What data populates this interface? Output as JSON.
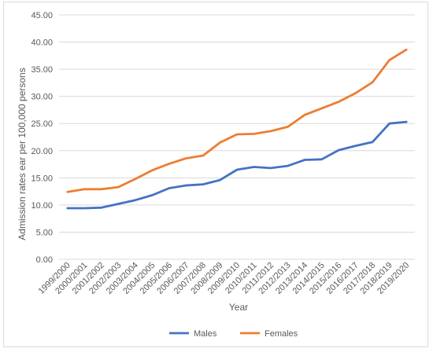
{
  "chart_data": {
    "type": "line",
    "title": "",
    "xlabel": "Year",
    "ylabel": "Admission rates ear per 100,000 persons",
    "ylim": [
      0,
      45
    ],
    "ytick_step": 5,
    "ytick_labels": [
      "0.00",
      "5.00",
      "10.00",
      "15.00",
      "20.00",
      "25.00",
      "30.00",
      "35.00",
      "40.00",
      "45.00"
    ],
    "grid": true,
    "legend_position": "bottom",
    "categories": [
      "1999/2000",
      "2000/2001",
      "2001/2002",
      "2002/2003",
      "2003/2004",
      "2004/2005",
      "2005/2006",
      "2006/2007",
      "2007/2008",
      "2008/2009",
      "2009/2010",
      "2010/2011",
      "2011/2012",
      "2012/2013",
      "2013/2014",
      "2014/2015",
      "2015/2016",
      "2016/2017",
      "2017/2018",
      "2018/2019",
      "2019/2020"
    ],
    "series": [
      {
        "name": "Males",
        "color": "#4472c4",
        "values": [
          9.4,
          9.4,
          9.5,
          10.2,
          10.9,
          11.8,
          13.1,
          13.6,
          13.8,
          14.6,
          16.5,
          17.0,
          16.8,
          17.2,
          18.3,
          18.4,
          20.1,
          20.9,
          21.6,
          25.0,
          25.3
        ]
      },
      {
        "name": "Females",
        "color": "#ed7d31",
        "values": [
          12.4,
          12.9,
          12.9,
          13.3,
          14.8,
          16.4,
          17.6,
          18.6,
          19.1,
          21.5,
          23.0,
          23.1,
          23.6,
          24.4,
          26.6,
          27.8,
          29.0,
          30.6,
          32.6,
          36.7,
          38.6
        ]
      }
    ]
  }
}
